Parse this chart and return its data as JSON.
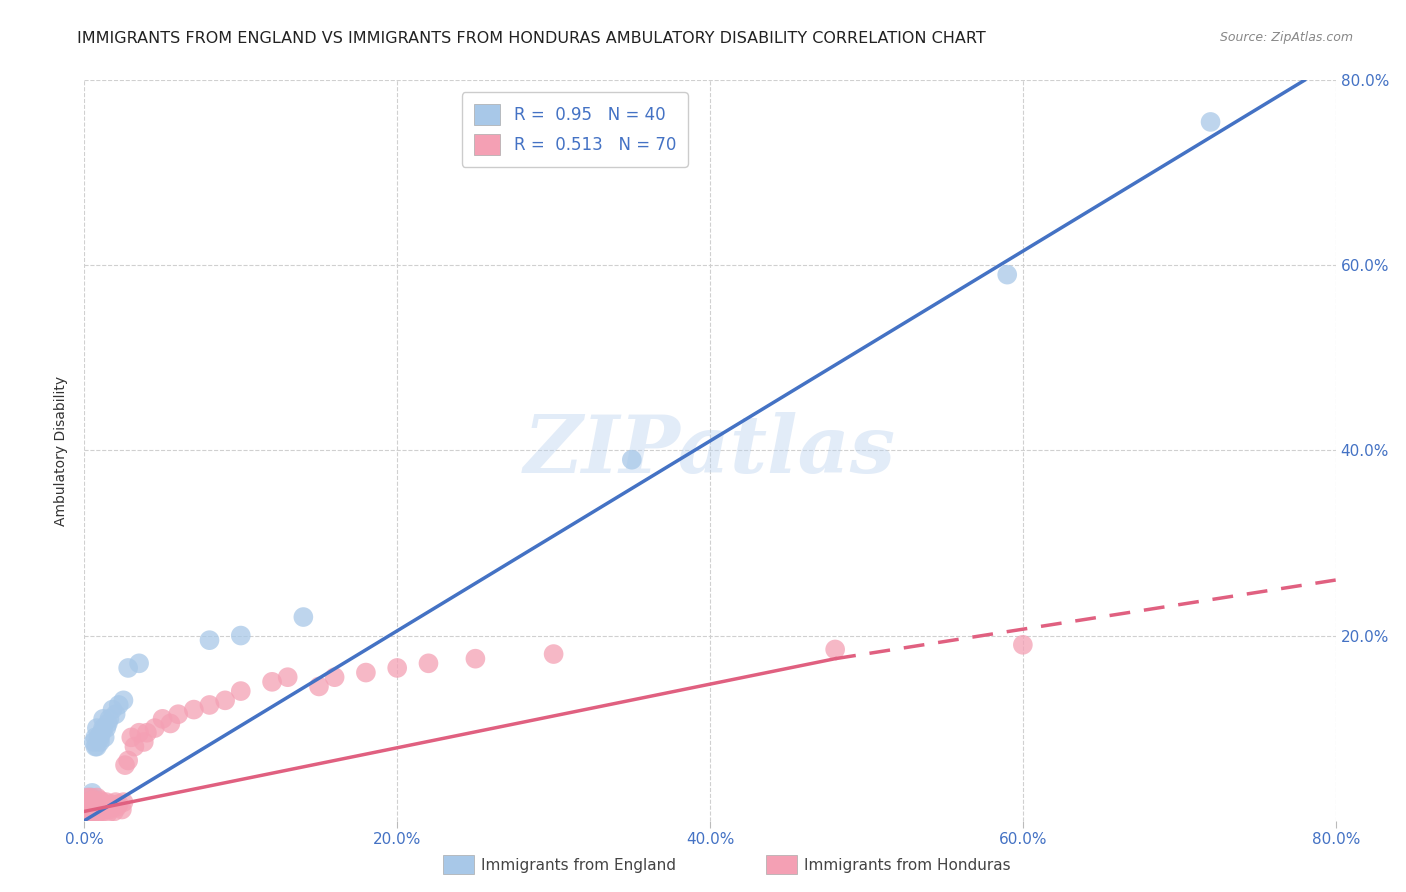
{
  "title": "IMMIGRANTS FROM ENGLAND VS IMMIGRANTS FROM HONDURAS AMBULATORY DISABILITY CORRELATION CHART",
  "source": "Source: ZipAtlas.com",
  "ylabel": "Ambulatory Disability",
  "xlim": [
    0.0,
    0.8
  ],
  "ylim": [
    0.0,
    0.8
  ],
  "x_ticks": [
    0.0,
    0.2,
    0.4,
    0.6,
    0.8
  ],
  "y_ticks": [
    0.2,
    0.4,
    0.6,
    0.8
  ],
  "england_R": 0.95,
  "england_N": 40,
  "honduras_R": 0.513,
  "honduras_N": 70,
  "england_color": "#a8c8e8",
  "honduras_color": "#f4a0b4",
  "england_line_color": "#4472c4",
  "honduras_line_color": "#e06080",
  "england_line_solid": [
    [
      0.0,
      0.0
    ],
    [
      0.78,
      0.8
    ]
  ],
  "honduras_line_solid": [
    [
      0.0,
      0.01
    ],
    [
      0.48,
      0.175
    ]
  ],
  "honduras_line_dashed": [
    [
      0.48,
      0.175
    ],
    [
      0.8,
      0.26
    ]
  ],
  "england_scatter_x": [
    0.001,
    0.002,
    0.002,
    0.003,
    0.003,
    0.003,
    0.004,
    0.004,
    0.004,
    0.005,
    0.005,
    0.005,
    0.006,
    0.006,
    0.007,
    0.007,
    0.008,
    0.008,
    0.009,
    0.01,
    0.01,
    0.011,
    0.012,
    0.012,
    0.013,
    0.014,
    0.015,
    0.016,
    0.018,
    0.02,
    0.022,
    0.025,
    0.028,
    0.035,
    0.08,
    0.1,
    0.14,
    0.35,
    0.59,
    0.72
  ],
  "england_scatter_y": [
    0.01,
    0.008,
    0.015,
    0.012,
    0.02,
    0.025,
    0.01,
    0.018,
    0.022,
    0.015,
    0.025,
    0.03,
    0.018,
    0.085,
    0.08,
    0.09,
    0.08,
    0.1,
    0.09,
    0.085,
    0.09,
    0.095,
    0.1,
    0.11,
    0.09,
    0.1,
    0.105,
    0.11,
    0.12,
    0.115,
    0.125,
    0.13,
    0.165,
    0.17,
    0.195,
    0.2,
    0.22,
    0.39,
    0.59,
    0.755
  ],
  "honduras_scatter_x": [
    0.001,
    0.001,
    0.002,
    0.002,
    0.002,
    0.003,
    0.003,
    0.003,
    0.004,
    0.004,
    0.004,
    0.005,
    0.005,
    0.005,
    0.006,
    0.006,
    0.006,
    0.007,
    0.007,
    0.008,
    0.008,
    0.008,
    0.009,
    0.009,
    0.01,
    0.01,
    0.01,
    0.011,
    0.011,
    0.012,
    0.012,
    0.013,
    0.014,
    0.015,
    0.015,
    0.016,
    0.017,
    0.018,
    0.019,
    0.02,
    0.021,
    0.022,
    0.024,
    0.025,
    0.026,
    0.028,
    0.03,
    0.032,
    0.035,
    0.038,
    0.04,
    0.045,
    0.05,
    0.055,
    0.06,
    0.07,
    0.08,
    0.09,
    0.1,
    0.12,
    0.13,
    0.15,
    0.16,
    0.18,
    0.2,
    0.22,
    0.25,
    0.3,
    0.48,
    0.6
  ],
  "honduras_scatter_y": [
    0.008,
    0.015,
    0.01,
    0.018,
    0.025,
    0.008,
    0.015,
    0.02,
    0.01,
    0.018,
    0.025,
    0.008,
    0.015,
    0.022,
    0.01,
    0.015,
    0.02,
    0.012,
    0.018,
    0.008,
    0.015,
    0.025,
    0.012,
    0.018,
    0.01,
    0.015,
    0.022,
    0.012,
    0.02,
    0.01,
    0.018,
    0.015,
    0.02,
    0.008,
    0.015,
    0.012,
    0.018,
    0.015,
    0.01,
    0.02,
    0.015,
    0.018,
    0.012,
    0.02,
    0.06,
    0.065,
    0.09,
    0.08,
    0.095,
    0.085,
    0.095,
    0.1,
    0.11,
    0.105,
    0.115,
    0.12,
    0.125,
    0.13,
    0.14,
    0.15,
    0.155,
    0.145,
    0.155,
    0.16,
    0.165,
    0.17,
    0.175,
    0.18,
    0.185,
    0.19
  ],
  "watermark": "ZIPatlas",
  "background_color": "#ffffff",
  "grid_color": "#d0d0d0",
  "title_fontsize": 11.5,
  "tick_label_color": "#4472c4",
  "legend_fontsize": 12
}
